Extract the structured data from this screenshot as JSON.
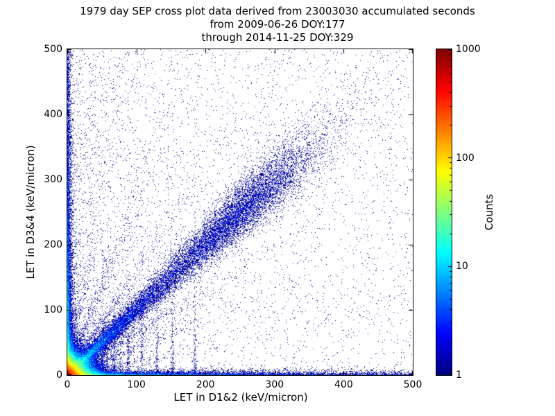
{
  "chart_data": {
    "type": "heatmap",
    "title_lines": [
      "1979 day SEP cross plot data derived from 23003030 accumulated seconds",
      "from 2009-06-26 DOY:177",
      "through 2014-11-25 DOY:329"
    ],
    "xlabel": "LET in D1&2 (keV/micron)",
    "ylabel": "LET in D3&4 (keV/micron)",
    "xlim": [
      0,
      500
    ],
    "ylim": [
      0,
      500
    ],
    "xticks": [
      0,
      100,
      200,
      300,
      400,
      500
    ],
    "yticks": [
      0,
      100,
      200,
      300,
      400,
      500
    ],
    "grid": false,
    "background": "#ffffff",
    "low_count_color": "#00007f",
    "colorbar": {
      "label": "Counts",
      "scale": "log",
      "range": [
        1,
        1000
      ],
      "ticks": [
        1000,
        100,
        10,
        1
      ],
      "colormap": "jet"
    },
    "distribution": {
      "seed": 7,
      "origin_core": {
        "n": 60000,
        "scale_x": 10,
        "scale_y": 10
      },
      "rays_from_origin": [
        {
          "angle_deg": 45,
          "n": 1500,
          "scale": 90
        },
        {
          "angle_deg": 33,
          "n": 900,
          "scale": 110
        },
        {
          "angle_deg": 23,
          "n": 600,
          "scale": 80
        },
        {
          "angle_deg": 12,
          "n": 400,
          "scale": 90
        },
        {
          "angle_deg": 58,
          "n": 800,
          "scale": 110
        },
        {
          "angle_deg": 70,
          "n": 700,
          "scale": 150
        },
        {
          "angle_deg": 80,
          "n": 600,
          "scale": 220
        },
        {
          "angle_deg": 86,
          "n": 500,
          "scale": 260
        }
      ],
      "diagonal_band": {
        "n": 20000,
        "exp_fraction": 0.62,
        "exp_scale": 90,
        "bump_center": 250,
        "bump_sigma": 55,
        "spread_base": 3,
        "spread_growth": 0.05
      },
      "left_edge_band": {
        "n": 9000,
        "x_scale": 2.5,
        "y_scale": 130,
        "uniform_fraction": 0.2
      },
      "bottom_edge_band": {
        "n": 7000,
        "y_scale": 2.5,
        "x_scale": 150,
        "uniform_fraction": 0.25
      },
      "uniform_scatter": {
        "n": 4000,
        "x_power": 1.35,
        "y_power": 1.05
      },
      "vertical_streaks": {
        "xs": [
          38,
          52,
          68,
          88,
          108,
          130,
          152,
          185
        ],
        "n_each": 120,
        "y_scale": 55,
        "x_jitter": 1.2
      }
    }
  }
}
